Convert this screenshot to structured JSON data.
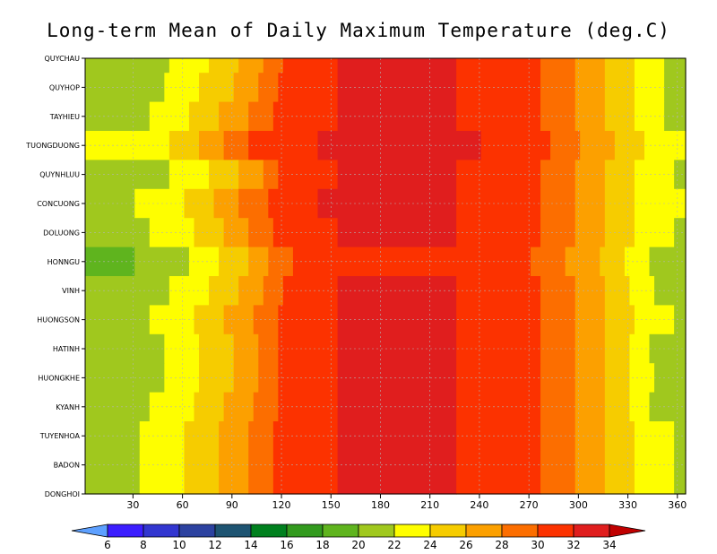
{
  "chart_data": {
    "type": "heatmap",
    "title": "Long-term Mean of Daily Maximum Temperature (deg.C)",
    "xlabel": "",
    "ylabel": "",
    "x_range": [
      1,
      365
    ],
    "x_ticks": [
      30,
      60,
      90,
      120,
      150,
      180,
      210,
      240,
      270,
      300,
      330,
      360
    ],
    "stations": [
      "QUYCHAU",
      "QUYHOP",
      "TAYHIEU",
      "TUONGDUONG",
      "QUYNHLUU",
      "CONCUONG",
      "DOLUONG",
      "HONNGU",
      "VINH",
      "HUONGSON",
      "HATINH",
      "HUONGKHE",
      "KYANH",
      "TUYENHOA",
      "BADON",
      "DONGHOI"
    ],
    "station_order": "top-to-bottom",
    "grid": true,
    "day_nodes": [
      1,
      20,
      40,
      60,
      75,
      90,
      105,
      120,
      140,
      165,
      185,
      210,
      240,
      260,
      270,
      280,
      290,
      300,
      315,
      330,
      345,
      365
    ],
    "temperature_profiles": [
      {
        "station": "QUYCHAU",
        "values": [
          20.5,
          20.5,
          21.5,
          22.5,
          24,
          25.5,
          27.5,
          30,
          31.5,
          32.5,
          33,
          32.5,
          31.5,
          31,
          30.5,
          29.5,
          28.5,
          27.5,
          26,
          24.5,
          22.5,
          21
        ]
      },
      {
        "station": "QUYHOP",
        "values": [
          20.5,
          20.5,
          21.5,
          23,
          24.5,
          26,
          28,
          30.5,
          31.5,
          32.5,
          33,
          32.5,
          31.5,
          31,
          30.5,
          29.5,
          28.5,
          27.5,
          26,
          24.5,
          22.5,
          21
        ]
      },
      {
        "station": "TAYHIEU",
        "values": [
          21,
          21,
          22,
          23.5,
          25.5,
          27,
          29,
          30.5,
          31.5,
          32.5,
          33,
          32.5,
          31.5,
          31,
          30.5,
          29.5,
          28.5,
          27.5,
          26,
          24.5,
          22.5,
          21
        ]
      },
      {
        "station": "TUONGDUONG",
        "values": [
          22.5,
          22.5,
          23,
          25,
          27,
          29,
          30.5,
          31.5,
          32,
          33,
          33.5,
          33,
          32,
          31.5,
          31,
          30,
          29,
          28,
          26.5,
          25,
          23,
          22.5
        ]
      },
      {
        "station": "QUYNHLUU",
        "values": [
          20.5,
          20.5,
          21.5,
          22.5,
          24,
          25.5,
          27.5,
          30.5,
          31.5,
          32.5,
          33,
          32.5,
          31.5,
          31,
          30.5,
          29.5,
          28.5,
          27.5,
          26,
          24.5,
          22.5,
          21.5
        ]
      },
      {
        "station": "CONCUONG",
        "values": [
          21.5,
          21.5,
          22.5,
          24,
          25.5,
          27.5,
          29.5,
          31,
          32,
          32.5,
          33,
          32.5,
          31.5,
          31,
          30.5,
          29.5,
          28.5,
          27.5,
          26,
          24.5,
          22.5,
          22
        ]
      },
      {
        "station": "DOLUONG",
        "values": [
          21,
          21,
          22,
          23.5,
          25,
          27,
          29,
          30.5,
          31.5,
          32.5,
          33,
          32.5,
          31.5,
          31,
          30.5,
          29.5,
          28.5,
          27.5,
          26,
          24.5,
          22.5,
          21.5
        ]
      },
      {
        "station": "HONNGU",
        "values": [
          19.5,
          19.5,
          20.5,
          21.5,
          23.5,
          25,
          27,
          29.5,
          31,
          31.5,
          32,
          31.5,
          31,
          30.5,
          30,
          29,
          28,
          27,
          25.5,
          23.5,
          21.5,
          20
        ]
      },
      {
        "station": "VINH",
        "values": [
          20.5,
          20.5,
          21.5,
          22.5,
          24,
          25.5,
          27.5,
          30,
          31.5,
          32.5,
          33,
          32.5,
          31.5,
          31,
          30.5,
          29.5,
          28.5,
          27.5,
          26,
          24,
          22,
          21
        ]
      },
      {
        "station": "HUONGSON",
        "values": [
          21,
          21,
          22,
          23.5,
          25,
          26.5,
          28.5,
          30.5,
          31.5,
          32.5,
          33,
          32.5,
          31.5,
          31,
          30.5,
          29.5,
          28.5,
          27.5,
          26,
          24.5,
          22.5,
          21.5
        ]
      },
      {
        "station": "HATINH",
        "values": [
          20.5,
          20.5,
          21.5,
          23,
          24.5,
          26,
          28,
          30.5,
          31.5,
          32.5,
          33,
          32.5,
          31.5,
          31,
          30.5,
          29.5,
          28.5,
          27.5,
          26,
          24,
          21.5,
          21
        ]
      },
      {
        "station": "HUONGKHE",
        "values": [
          20.5,
          20.5,
          21.5,
          23,
          24.5,
          26,
          28,
          30.5,
          31.5,
          32.5,
          33,
          32.5,
          31.5,
          31,
          30.5,
          29.5,
          28.5,
          27.5,
          26,
          24,
          22,
          21
        ]
      },
      {
        "station": "KYANH",
        "values": [
          21,
          21,
          22,
          23.5,
          25,
          26.5,
          28.5,
          30.5,
          31.5,
          32.5,
          33,
          32.5,
          31.5,
          31,
          30.5,
          29.5,
          28.5,
          27.5,
          26,
          24,
          21.5,
          21
        ]
      },
      {
        "station": "TUYENHOA",
        "values": [
          21,
          21,
          22.5,
          24,
          25.5,
          27,
          29,
          30.5,
          31.5,
          32.5,
          33,
          32.5,
          31.5,
          31,
          30.5,
          29.5,
          28.5,
          27.5,
          26,
          24.5,
          22.5,
          21.5
        ]
      },
      {
        "station": "BADON",
        "values": [
          21,
          21,
          22.5,
          24,
          25.5,
          27,
          29,
          30.5,
          31.5,
          32.5,
          33,
          32.5,
          31.5,
          31,
          30.5,
          29.5,
          28.5,
          27.5,
          26,
          24.5,
          22.5,
          21.5
        ]
      },
      {
        "station": "DONGHOI",
        "values": [
          21,
          21,
          22.5,
          24,
          25.5,
          27,
          29,
          30.5,
          31.5,
          32.5,
          33,
          32.5,
          31.5,
          31,
          30.5,
          29.5,
          28.5,
          27.5,
          26,
          24.5,
          22.5,
          21.5
        ]
      }
    ],
    "colorbar": {
      "levels": [
        6,
        8,
        10,
        12,
        14,
        16,
        18,
        20,
        22,
        24,
        26,
        28,
        30,
        32,
        34
      ],
      "colors": [
        "#5da0ff",
        "#3c1eff",
        "#3236d0",
        "#2c42a0",
        "#1e5472",
        "#00801e",
        "#329a1e",
        "#5fb41e",
        "#a0c81e",
        "#fefe00",
        "#f6cc00",
        "#fca000",
        "#fc6e00",
        "#fc3200",
        "#e01e1e",
        "#c00000"
      ]
    }
  }
}
